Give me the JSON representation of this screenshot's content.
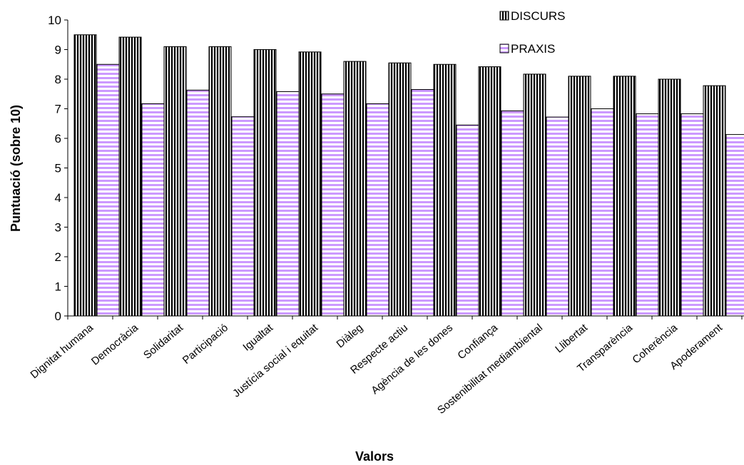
{
  "chart_data": {
    "type": "bar",
    "xlabel": "Valors",
    "ylabel": "Puntuació (sobre 10)",
    "ylim": [
      0,
      10
    ],
    "yticks": [
      0,
      1,
      2,
      3,
      4,
      5,
      6,
      7,
      8,
      9,
      10
    ],
    "grid": false,
    "legend_position": "top-right",
    "categories": [
      "Dignitat humana",
      "Democràcia",
      "Solidaritat",
      "Participació",
      "Igualtat",
      "Justícia social i equitat",
      "Diàleg",
      "Respecte actiu",
      "Agència de les dones",
      "Confiança",
      "Sostenibilitat mediambiental",
      "Llibertat",
      "Transparència",
      "Coherència",
      "Apoderament"
    ],
    "series": [
      {
        "name": "DISCURS",
        "pattern": "vertical-stripes",
        "color": "#000000",
        "values": [
          9.5,
          9.42,
          9.1,
          9.1,
          9.0,
          8.92,
          8.6,
          8.55,
          8.5,
          8.42,
          8.17,
          8.1,
          8.1,
          8.0,
          7.78
        ]
      },
      {
        "name": "PRAXIS",
        "pattern": "horizontal-stripes",
        "color": "#cc99ff",
        "values": [
          8.5,
          7.17,
          7.63,
          6.73,
          7.58,
          7.5,
          7.17,
          7.65,
          6.45,
          6.93,
          6.72,
          7.0,
          6.83,
          6.83,
          6.13
        ]
      }
    ]
  }
}
